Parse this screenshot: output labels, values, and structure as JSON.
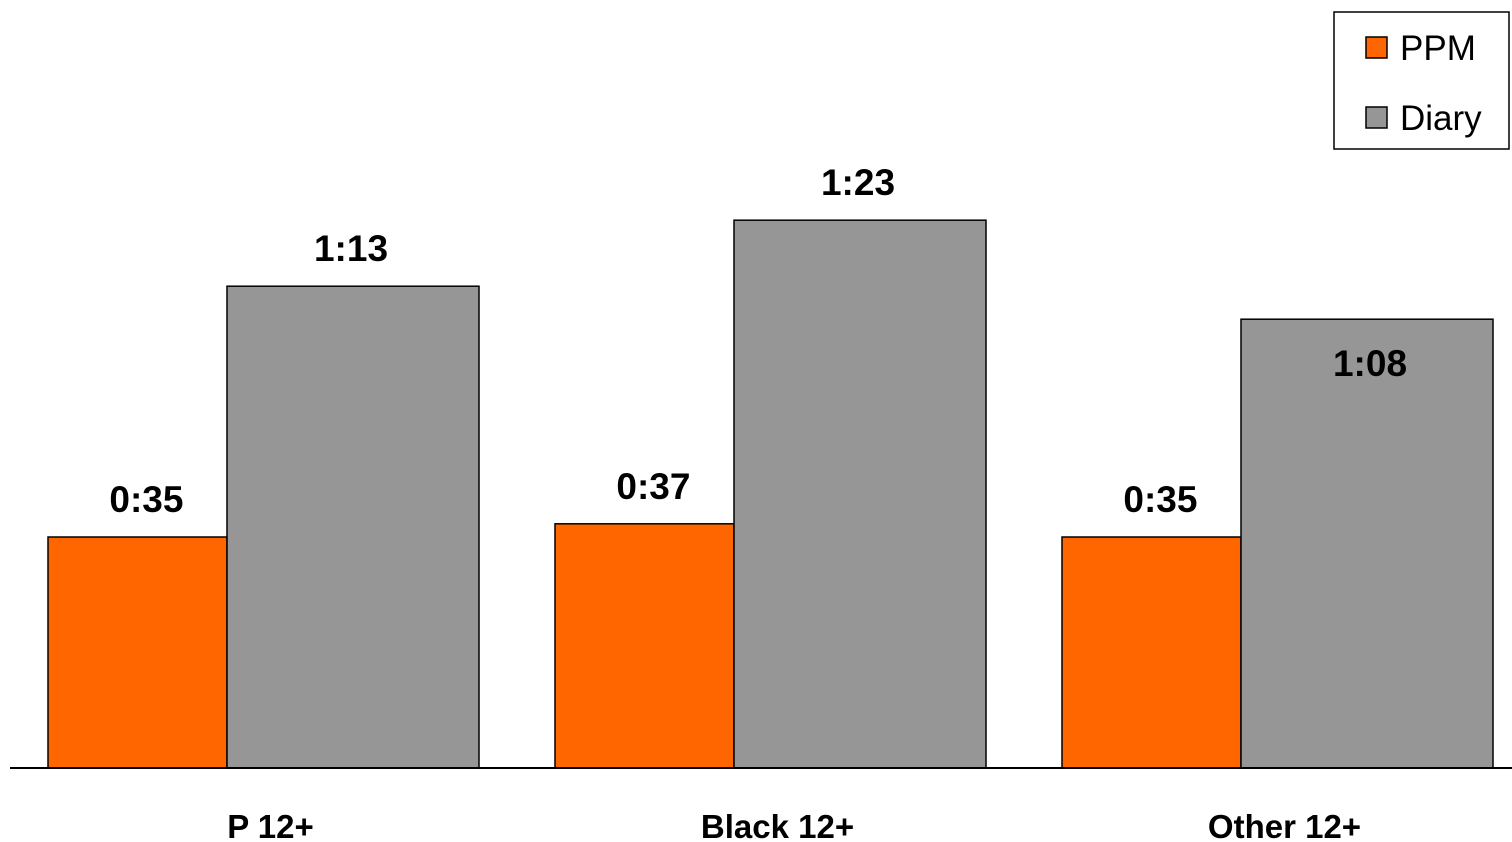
{
  "chart_data": {
    "type": "bar",
    "categories": [
      "P 12+",
      "Black 12+",
      "Other 12+"
    ],
    "series": [
      {
        "name": "PPM",
        "color": "#ff6600",
        "values": [
          35,
          37,
          35
        ],
        "labels": [
          "0:35",
          "0:37",
          "0:35"
        ]
      },
      {
        "name": "Diary",
        "color": "#969696",
        "values": [
          73,
          83,
          68
        ],
        "labels": [
          "1:13",
          "1:23",
          "1:08"
        ]
      }
    ],
    "value_unit": "minutes",
    "ylim": [
      0,
      120
    ],
    "grid": false,
    "legend_position": "top-right"
  }
}
